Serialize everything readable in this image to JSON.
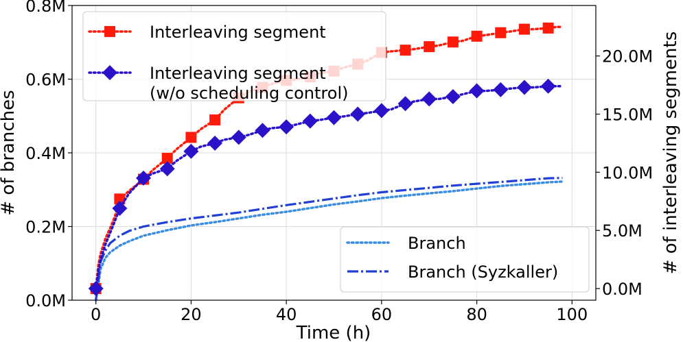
{
  "chart_data": {
    "type": "line",
    "xlabel": "Time (h)",
    "ylabel_left": "# of branches",
    "ylabel_right": "# of interleaving segments",
    "xlim": [
      -5,
      105
    ],
    "ylim_left": [
      0,
      800000
    ],
    "ylim_right": [
      -1000000,
      24340000
    ],
    "x_ticks": [
      0,
      20,
      40,
      60,
      80,
      100
    ],
    "x_tick_labels": [
      "0",
      "20",
      "40",
      "60",
      "80",
      "100"
    ],
    "y_left_ticks": [
      0,
      200000,
      400000,
      600000,
      800000
    ],
    "y_left_tick_labels": [
      "0.0M",
      "0.2M",
      "0.4M",
      "0.6M",
      "0.8M"
    ],
    "y_right_ticks": [
      0,
      5000000,
      10000000,
      15000000,
      20000000
    ],
    "y_right_tick_labels": [
      "0.0M",
      "5.0M",
      "10.0M",
      "15.0M",
      "20.0M"
    ],
    "grid": true,
    "legends": {
      "upper_left": [
        "Interleaving segment",
        "Interleaving segment\n(w/o scheduling control)"
      ],
      "lower_right": [
        "Branch",
        "Branch (Syzkaller)"
      ]
    },
    "series": [
      {
        "name": "Interleaving segment",
        "axis": "right",
        "color": "#ff1a0a",
        "style": "dotted",
        "marker": "square",
        "x": [
          0,
          0.5,
          1,
          2,
          3,
          4,
          5,
          7,
          10,
          12,
          15,
          17,
          20,
          22,
          25,
          27,
          30,
          32,
          35,
          37,
          40,
          42,
          45,
          47,
          50,
          52,
          55,
          57,
          60,
          62,
          65,
          67,
          70,
          72,
          75,
          77,
          80,
          82,
          85,
          87,
          90,
          92,
          95,
          97,
          98
        ],
        "y": [
          0,
          2000000,
          3000000,
          4300000,
          5200000,
          6200000,
          7700000,
          8400000,
          9400000,
          10200000,
          11200000,
          12000000,
          13000000,
          13700000,
          14500000,
          15400000,
          16400000,
          16900000,
          17300000,
          17600000,
          17900000,
          18000000,
          18200000,
          18500000,
          18700000,
          19000000,
          19300000,
          19600000,
          20300000,
          20400000,
          20500000,
          20600000,
          20800000,
          20900000,
          21200000,
          21300000,
          21700000,
          21800000,
          22000000,
          22100000,
          22300000,
          22300000,
          22400000,
          22500000,
          22500000
        ],
        "marker_x": [
          0,
          5,
          10,
          15,
          20,
          25,
          30,
          35,
          40,
          45,
          50,
          55,
          60,
          65,
          70,
          75,
          80,
          85,
          90,
          95
        ],
        "marker_y": [
          0,
          7700000,
          9400000,
          11200000,
          13000000,
          14500000,
          16400000,
          17300000,
          17900000,
          18200000,
          18700000,
          19300000,
          20300000,
          20500000,
          20800000,
          21200000,
          21700000,
          22000000,
          22300000,
          22400000
        ]
      },
      {
        "name": "Interleaving segment\n(w/o scheduling control)",
        "axis": "right",
        "color": "#2a12c8",
        "style": "dotted",
        "marker": "diamond",
        "x": [
          0,
          0.5,
          1,
          2,
          3,
          4,
          5,
          7,
          10,
          12,
          15,
          17,
          20,
          22,
          25,
          27,
          30,
          32,
          35,
          37,
          40,
          42,
          45,
          47,
          50,
          52,
          55,
          57,
          60,
          62,
          65,
          67,
          70,
          72,
          75,
          77,
          80,
          82,
          85,
          87,
          90,
          92,
          95,
          97,
          98
        ],
        "y": [
          0,
          1500000,
          2500000,
          3800000,
          4800000,
          5800000,
          6900000,
          8200000,
          9500000,
          9900000,
          10300000,
          11000000,
          11800000,
          12200000,
          12500000,
          12800000,
          13000000,
          13200000,
          13600000,
          13800000,
          13900000,
          14100000,
          14400000,
          14500000,
          14700000,
          14800000,
          15000000,
          15100000,
          15300000,
          15400000,
          15900000,
          16100000,
          16300000,
          16300000,
          16500000,
          16700000,
          17000000,
          17000000,
          17100000,
          17200000,
          17300000,
          17300000,
          17400000,
          17400000,
          17400000
        ],
        "marker_x": [
          0,
          5,
          10,
          15,
          20,
          25,
          30,
          35,
          40,
          45,
          50,
          55,
          60,
          65,
          70,
          75,
          80,
          85,
          90,
          95
        ],
        "marker_y": [
          0,
          6900000,
          9500000,
          10300000,
          11800000,
          12500000,
          13000000,
          13600000,
          13900000,
          14400000,
          14700000,
          15000000,
          15300000,
          15900000,
          16300000,
          16500000,
          17000000,
          17100000,
          17300000,
          17400000
        ]
      },
      {
        "name": "Branch",
        "axis": "left",
        "color": "#3a8de0",
        "style": "dotted",
        "x": [
          0,
          1,
          2,
          3,
          5,
          7,
          10,
          15,
          20,
          25,
          30,
          35,
          40,
          45,
          50,
          55,
          60,
          65,
          70,
          75,
          80,
          85,
          90,
          95,
          98
        ],
        "y": [
          0,
          85000,
          115000,
          130000,
          148000,
          160000,
          175000,
          190000,
          203000,
          212000,
          222000,
          232000,
          240000,
          250000,
          260000,
          268000,
          277000,
          284000,
          290000,
          296000,
          303000,
          310000,
          315000,
          320000,
          322000
        ]
      },
      {
        "name": "Branch (Syzkaller)",
        "axis": "left",
        "color": "#1f3fd6",
        "style": "dashdot",
        "x": [
          0,
          1,
          2,
          3,
          5,
          7,
          10,
          15,
          20,
          25,
          30,
          35,
          40,
          45,
          50,
          55,
          60,
          65,
          70,
          75,
          80,
          85,
          90,
          95,
          98
        ],
        "y": [
          0,
          105000,
          135000,
          155000,
          175000,
          188000,
          200000,
          212000,
          222000,
          230000,
          238000,
          248000,
          258000,
          267000,
          276000,
          285000,
          293000,
          299000,
          305000,
          311000,
          316000,
          321000,
          326000,
          331000,
          332000
        ]
      }
    ]
  }
}
